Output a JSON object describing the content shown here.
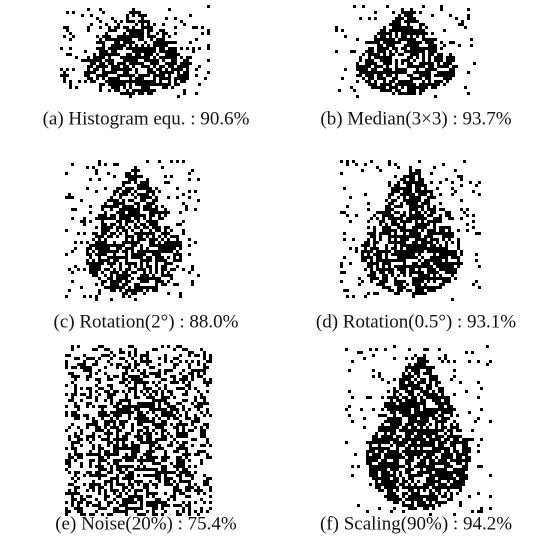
{
  "figures": [
    {
      "caption": "(a) Histogram equ. : 90.6%"
    },
    {
      "caption": "(b) Median(3×3) : 93.7%"
    },
    {
      "caption": "(c) Rotation(2°) : 88.0%"
    },
    {
      "caption": "(d) Rotation(0.5°) : 93.1%"
    },
    {
      "caption": "(e) Noise(20%) : 75.4%"
    },
    {
      "caption": "(f) Scaling(90%) : 94.2%"
    }
  ]
}
